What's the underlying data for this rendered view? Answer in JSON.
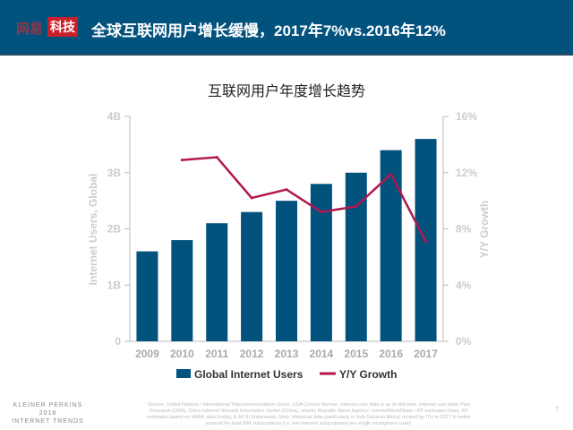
{
  "header": {
    "logo_part1": "网易",
    "logo_part2": "科技",
    "title": "全球互联网用户增长缓慢，2017年7%vs.2016年12%"
  },
  "chart_data": {
    "type": "bar+line",
    "title": "互联网用户年度增长趋势",
    "categories": [
      "2009",
      "2010",
      "2011",
      "2012",
      "2013",
      "2014",
      "2015",
      "2016",
      "2017"
    ],
    "series": [
      {
        "name": "Global Internet Users",
        "type": "bar",
        "axis": "left",
        "unit": "B",
        "values": [
          1.6,
          1.8,
          2.1,
          2.3,
          2.5,
          2.8,
          3.0,
          3.4,
          3.6
        ],
        "color": "#02527e"
      },
      {
        "name": "Y/Y Growth",
        "type": "line",
        "axis": "right",
        "unit": "%",
        "values": [
          null,
          12.9,
          13.1,
          10.2,
          10.8,
          9.2,
          9.6,
          11.9,
          7.1
        ],
        "color": "#b0184f"
      }
    ],
    "ylabel": "Internet Users, Global",
    "y2label": "Y/Y Growth",
    "ylim": [
      0,
      4
    ],
    "y2lim": [
      0,
      16
    ],
    "yticks": [
      "0",
      "1B",
      "2B",
      "3B",
      "4B"
    ],
    "y2ticks": [
      "0%",
      "4%",
      "8%",
      "12%",
      "16%"
    ],
    "legend": "bottom",
    "grid": false
  },
  "footer": {
    "brand_line1": "KLEINER PERKINS",
    "brand_line2": "2018",
    "brand_line3": "INTERNET TRENDS",
    "source": "Source: United Nations / International Telecommunications Union, USA Census Bureau. Internet user data is as of mid-year. Internet user data: Pew Research (USA), China Internet Network Information Center (China), Islamic Republic News Agency / InternetWorldStats / KP estimates (Iran), KP estimates based on IAMAI data (India), & APJII (Indonesia). Note: Historical data (particularly in Sub-Saharan Africa) revised by ITU in 2017 to better account for dual-SIM subscriptions (i.e. two Internet subscriptions per single smartphone user).",
    "page": "7"
  }
}
